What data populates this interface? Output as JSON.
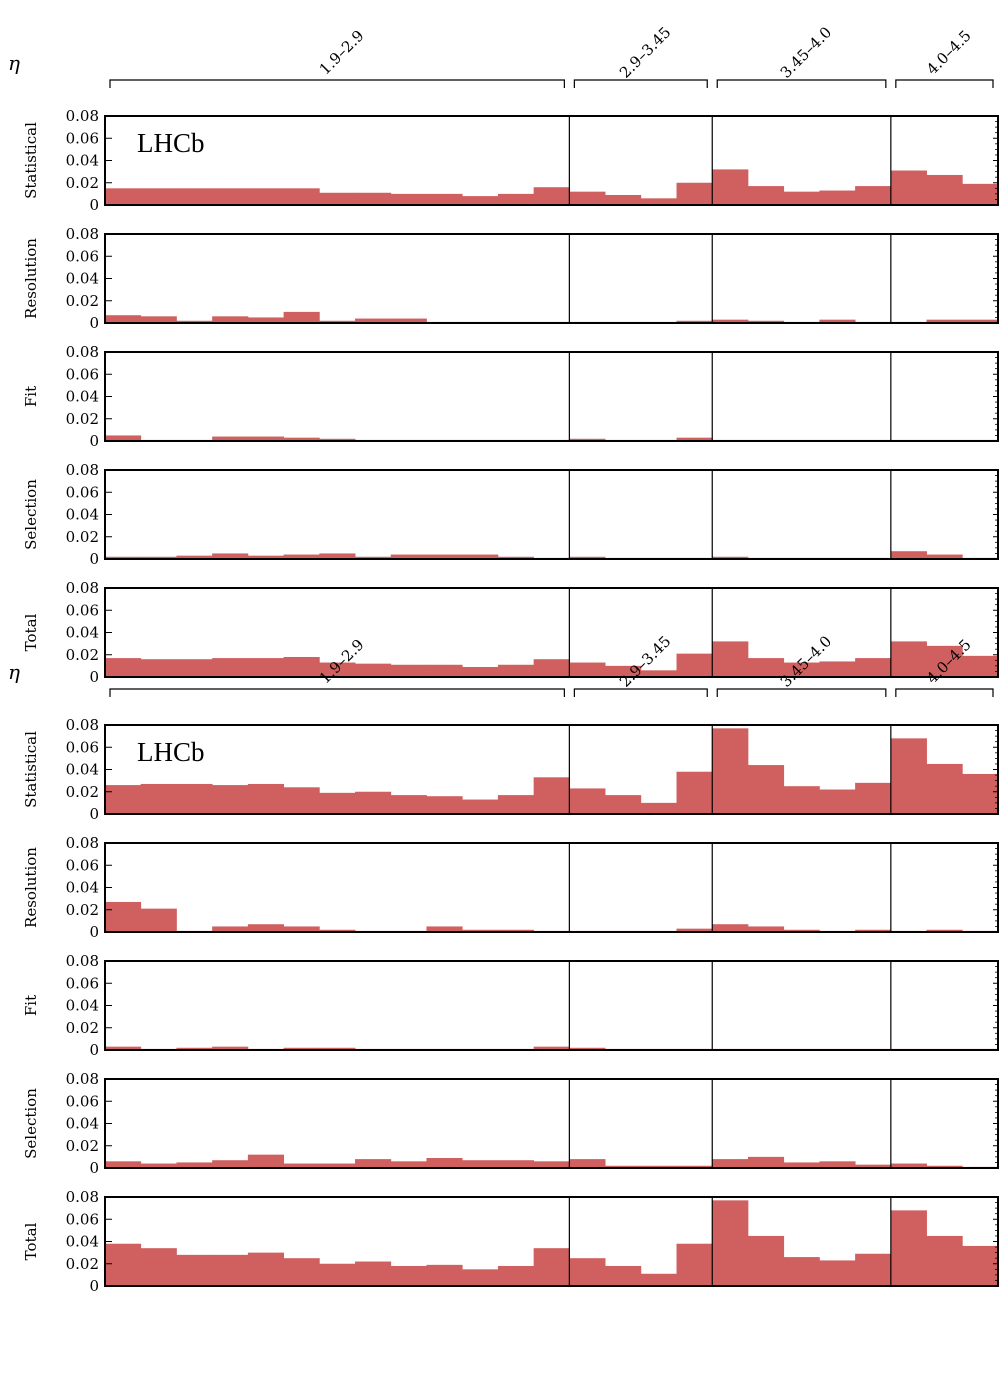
{
  "chart_data": [
    {
      "type": "bar",
      "experiment_label": "LHCb",
      "eta_symbol": "η",
      "eta_bins": [
        "1.9–2.9",
        "2.9–3.45",
        "3.45–4.0",
        "4.0–4.5"
      ],
      "bins_per_eta": [
        13,
        4,
        5,
        3
      ],
      "ylim": [
        0,
        0.08
      ],
      "yticks": [
        "0.08",
        "0.06",
        "0.04",
        "0.02",
        "0"
      ],
      "bar_color": "#d06060",
      "rows": [
        {
          "label": "Statistical",
          "values": [
            0.015,
            0.015,
            0.015,
            0.015,
            0.015,
            0.015,
            0.011,
            0.011,
            0.01,
            0.01,
            0.008,
            0.01,
            0.016,
            0.012,
            0.009,
            0.006,
            0.02,
            0.032,
            0.017,
            0.012,
            0.013,
            0.017,
            0.031,
            0.027,
            0.019
          ]
        },
        {
          "label": "Resolution",
          "values": [
            0.007,
            0.006,
            0.002,
            0.006,
            0.005,
            0.01,
            0.002,
            0.004,
            0.004,
            0.001,
            0.001,
            0.001,
            0.001,
            0.001,
            0.001,
            0.001,
            0.002,
            0.003,
            0.002,
            0.001,
            0.003,
            0.001,
            0.001,
            0.003,
            0.003
          ]
        },
        {
          "label": "Fit",
          "values": [
            0.005,
            0.001,
            0.001,
            0.004,
            0.004,
            0.003,
            0.002,
            0.001,
            0.001,
            0.001,
            0.001,
            0.001,
            0.001,
            0.002,
            0.001,
            0.001,
            0.003,
            0.001,
            0.001,
            0.001,
            0.001,
            0.001,
            0.001,
            0.001,
            0.001
          ]
        },
        {
          "label": "Selection",
          "values": [
            0.002,
            0.002,
            0.003,
            0.005,
            0.003,
            0.004,
            0.005,
            0.002,
            0.004,
            0.004,
            0.004,
            0.002,
            0.001,
            0.002,
            0.001,
            0.001,
            0.001,
            0.002,
            0.001,
            0.001,
            0.001,
            0.001,
            0.007,
            0.004,
            0.001
          ]
        },
        {
          "label": "Total",
          "values": [
            0.017,
            0.016,
            0.016,
            0.017,
            0.017,
            0.018,
            0.013,
            0.012,
            0.011,
            0.011,
            0.009,
            0.011,
            0.016,
            0.013,
            0.01,
            0.006,
            0.021,
            0.032,
            0.017,
            0.013,
            0.014,
            0.017,
            0.032,
            0.028,
            0.019
          ]
        }
      ]
    },
    {
      "type": "bar",
      "experiment_label": "LHCb",
      "eta_symbol": "η",
      "eta_bins": [
        "1.9–2.9",
        "2.9–3.45",
        "3.45–4.0",
        "4.0–4.5"
      ],
      "bins_per_eta": [
        13,
        4,
        5,
        3
      ],
      "ylim": [
        0,
        0.08
      ],
      "yticks": [
        "0.08",
        "0.06",
        "0.04",
        "0.02",
        "0"
      ],
      "bar_color": "#d06060",
      "rows": [
        {
          "label": "Statistical",
          "values": [
            0.026,
            0.027,
            0.027,
            0.026,
            0.027,
            0.024,
            0.019,
            0.02,
            0.017,
            0.016,
            0.013,
            0.017,
            0.033,
            0.023,
            0.017,
            0.01,
            0.038,
            0.077,
            0.044,
            0.025,
            0.022,
            0.028,
            0.068,
            0.045,
            0.036
          ]
        },
        {
          "label": "Resolution",
          "values": [
            0.027,
            0.021,
            0.001,
            0.005,
            0.007,
            0.005,
            0.002,
            0.001,
            0.001,
            0.005,
            0.002,
            0.002,
            0.001,
            0.001,
            0.001,
            0.001,
            0.003,
            0.007,
            0.005,
            0.002,
            0.001,
            0.002,
            0.001,
            0.002,
            0.001
          ]
        },
        {
          "label": "Fit",
          "values": [
            0.003,
            0.001,
            0.002,
            0.003,
            0.001,
            0.002,
            0.002,
            0.001,
            0.001,
            0.001,
            0.001,
            0.001,
            0.003,
            0.002,
            0.001,
            0.001,
            0.001,
            0.001,
            0.001,
            0.001,
            0.001,
            0.001,
            0.001,
            0.001,
            0.001
          ]
        },
        {
          "label": "Selection",
          "values": [
            0.006,
            0.004,
            0.005,
            0.007,
            0.012,
            0.004,
            0.004,
            0.008,
            0.006,
            0.009,
            0.007,
            0.007,
            0.006,
            0.008,
            0.002,
            0.002,
            0.002,
            0.008,
            0.01,
            0.005,
            0.006,
            0.003,
            0.004,
            0.002,
            0.001
          ]
        },
        {
          "label": "Total",
          "values": [
            0.038,
            0.034,
            0.028,
            0.028,
            0.03,
            0.025,
            0.02,
            0.022,
            0.018,
            0.019,
            0.015,
            0.018,
            0.034,
            0.025,
            0.018,
            0.011,
            0.038,
            0.077,
            0.045,
            0.026,
            0.023,
            0.029,
            0.068,
            0.045,
            0.036
          ]
        }
      ]
    }
  ]
}
